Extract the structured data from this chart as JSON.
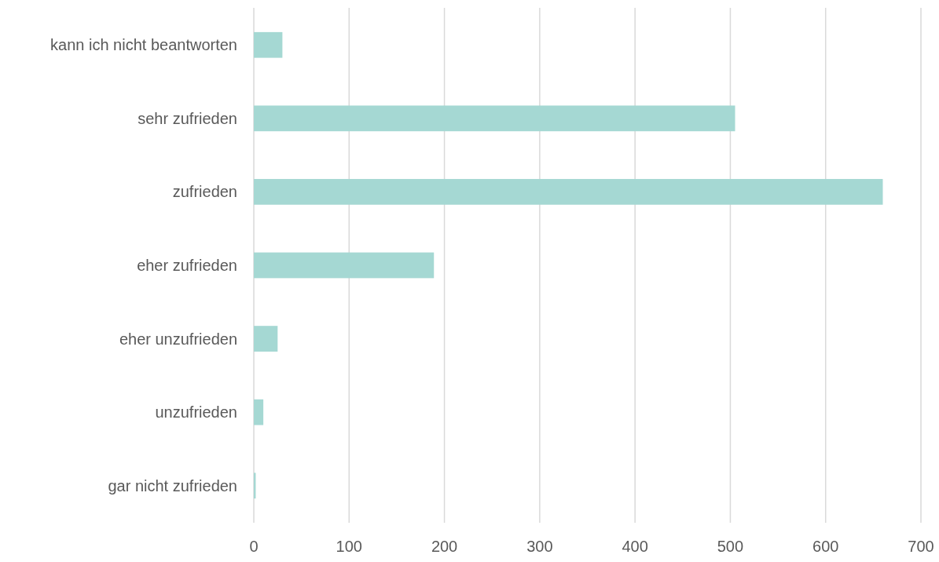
{
  "chart_data": {
    "type": "bar",
    "orientation": "horizontal",
    "categories": [
      "kann ich nicht beantworten",
      "sehr zufrieden",
      "zufrieden",
      "eher zufrieden",
      "eher unzufrieden",
      "unzufrieden",
      "gar nicht zufrieden"
    ],
    "values": [
      30,
      505,
      660,
      189,
      25,
      10,
      2
    ],
    "color": "#a5d8d3",
    "xlim": [
      0,
      700
    ],
    "xticks": [
      0,
      100,
      200,
      300,
      400,
      500,
      600,
      700
    ],
    "grid": "x"
  }
}
